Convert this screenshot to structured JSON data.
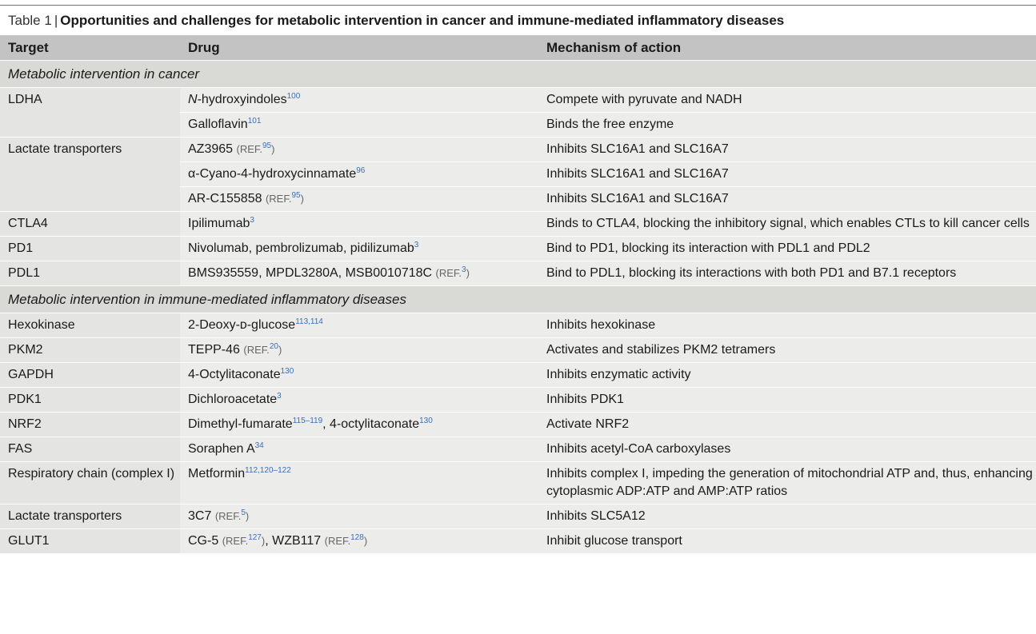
{
  "caption": {
    "label": "Table 1",
    "separator": "|",
    "title": "Opportunities and challenges for metabolic intervention in cancer and immune-mediated inflammatory diseases"
  },
  "headers": {
    "target": "Target",
    "drug": "Drug",
    "mechanism": "Mechanism of action"
  },
  "sections": {
    "cancer": "Metabolic intervention in cancer",
    "immune": "Metabolic intervention in immune-mediated inflammatory diseases"
  },
  "rows": {
    "ldha": {
      "target": "LDHA"
    },
    "ldha1": {
      "drug_italic": "N",
      "drug": "-hydroxyindoles",
      "sup": "100",
      "mechanism": "Compete with pyruvate and NADH"
    },
    "ldha2": {
      "drug": "Galloflavin",
      "sup": "101",
      "mechanism": "Binds the free enzyme"
    },
    "lact": {
      "target": "Lactate transporters"
    },
    "lact1": {
      "drug": "AZ3965",
      "ref": "(REF.",
      "sup": "95",
      "ref_close": ")",
      "mechanism": "Inhibits SLC16A1 and SLC16A7"
    },
    "lact2": {
      "drug": "α-Cyano-4-hydroxycinnamate",
      "sup": "96",
      "mechanism": "Inhibits SLC16A1 and SLC16A7"
    },
    "lact3": {
      "drug": "AR-C155858",
      "ref": "(REF.",
      "sup": "95",
      "ref_close": ")",
      "mechanism": "Inhibits SLC16A1 and SLC16A7"
    },
    "ctla4": {
      "target": "CTLA4",
      "drug": "Ipilimumab",
      "sup": "3",
      "mechanism": "Binds to CTLA4, blocking the inhibitory signal, which enables CTLs to kill cancer cells"
    },
    "pd1": {
      "target": "PD1",
      "drug": "Nivolumab, pembrolizumab, pidilizumab",
      "sup": "3",
      "mechanism": "Bind to PD1, blocking its interaction with PDL1 and PDL2"
    },
    "pdl1": {
      "target": "PDL1",
      "drug": "BMS935559, MPDL3280A, MSB0010718C",
      "ref": "(REF.",
      "sup": "3",
      "ref_close": ")",
      "mechanism": "Bind to PDL1, blocking its interactions with both PD1 and B7.1 receptors"
    },
    "hexo": {
      "target": "Hexokinase",
      "drug": "2-Deoxy-ᴅ-glucose",
      "sup": "113,114",
      "mechanism": "Inhibits hexokinase"
    },
    "pkm2": {
      "target": "PKM2",
      "drug": "TEPP-46",
      "ref": "(REF.",
      "sup": "20",
      "ref_close": ")",
      "mechanism": "Activates and stabilizes PKM2 tetramers"
    },
    "gapdh": {
      "target": "GAPDH",
      "drug": "4-Octylitaconate",
      "sup": "130",
      "mechanism": "Inhibits enzymatic activity"
    },
    "pdk1": {
      "target": "PDK1",
      "drug": "Dichloroacetate",
      "sup": "3",
      "mechanism": "Inhibits PDK1"
    },
    "nrf2": {
      "target": "NRF2",
      "drug": "Dimethyl-fumarate",
      "sup": "115–119",
      "drug2": ", 4-octylitaconate",
      "sup2": "130",
      "mechanism": "Activate NRF2"
    },
    "fas": {
      "target": "FAS",
      "drug": "Soraphen A",
      "sup": "34",
      "mechanism": "Inhibits acetyl-CoA carboxylases"
    },
    "resp": {
      "target": "Respiratory chain (complex I)",
      "drug": "Metformin",
      "sup": "112,120–122",
      "mechanism": "Inhibits complex I, impeding the generation of mitochondrial ATP and, thus, enhancing cytoplasmic ADP:ATP and AMP:ATP ratios"
    },
    "lact4": {
      "target": "Lactate transporters",
      "drug": "3C7",
      "ref": "(REF.",
      "sup": "5",
      "ref_close": ")",
      "mechanism": "Inhibits SLC5A12"
    },
    "glut1": {
      "target": "GLUT1",
      "drug": "CG-5",
      "ref": "(REF.",
      "sup": "127",
      "ref_close": ")",
      "drug2": ", WZB117",
      "ref2": "(REF.",
      "sup2": "128",
      "ref2_close": ")",
      "mechanism": "Inhibit glucose transport"
    }
  }
}
